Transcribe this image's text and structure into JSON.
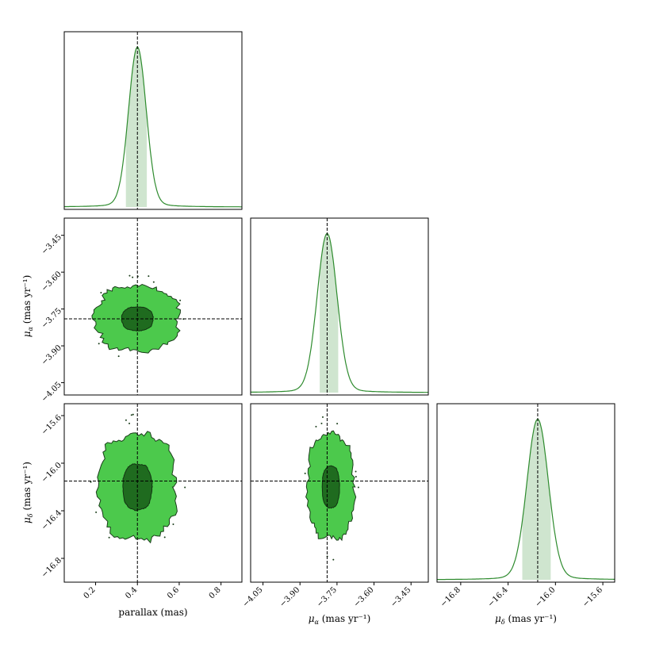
{
  "chart_data": {
    "type": "corner",
    "colors": {
      "line": "#2e8b2e",
      "band": "#cfe5cf",
      "contour_outer": "#4cc94c",
      "contour_inner": "#1f6b1f",
      "truth": "#000000"
    },
    "parameters": [
      {
        "id": "parallax",
        "label": "parallax (mas)",
        "range": [
          0.05,
          0.9
        ],
        "ticks": [
          0.2,
          0.4,
          0.6,
          0.8
        ],
        "tick_labels": [
          "0.2",
          "0.4",
          "0.6",
          "0.8"
        ],
        "truth": 0.4,
        "mode": 0.4,
        "band": [
          0.345,
          0.445
        ],
        "sigma": 0.042
      },
      {
        "id": "mu_alpha",
        "label_main": "μ",
        "label_sub": "α",
        "label_units": " (mas yr⁻¹)",
        "range": [
          -4.1,
          -3.38
        ],
        "ticks": [
          -4.05,
          -3.9,
          -3.75,
          -3.6,
          -3.45
        ],
        "tick_labels": [
          "−4.05",
          "−3.90",
          "−3.75",
          "−3.60",
          "−3.45"
        ],
        "truth": -3.79,
        "mode": -3.79,
        "band": [
          -3.82,
          -3.745
        ],
        "sigma": 0.04
      },
      {
        "id": "mu_delta",
        "label_main": "μ",
        "label_sub": "δ",
        "label_units": " (mas yr⁻¹)",
        "range": [
          -17.0,
          -15.5
        ],
        "ticks": [
          -16.8,
          -16.4,
          -16.0,
          -15.6
        ],
        "tick_labels": [
          "−16.8",
          "−16.4",
          "−16.0",
          "−15.6"
        ],
        "truth": -16.15,
        "mode": -16.15,
        "band": [
          -16.28,
          -16.04
        ],
        "sigma": 0.09
      }
    ],
    "contours": {
      "1_0": {
        "center": [
          0.4,
          -3.79
        ],
        "inner": [
          0.075,
          0.055
        ],
        "outer": [
          0.2,
          0.15
        ]
      },
      "2_0": {
        "center": [
          0.4,
          -16.2
        ],
        "inner": [
          0.07,
          0.22
        ],
        "outer": [
          0.185,
          0.5
        ]
      },
      "2_1": {
        "center": [
          -3.775,
          -16.2
        ],
        "inner": [
          0.035,
          0.2
        ],
        "outer": [
          0.095,
          0.5
        ]
      }
    }
  }
}
